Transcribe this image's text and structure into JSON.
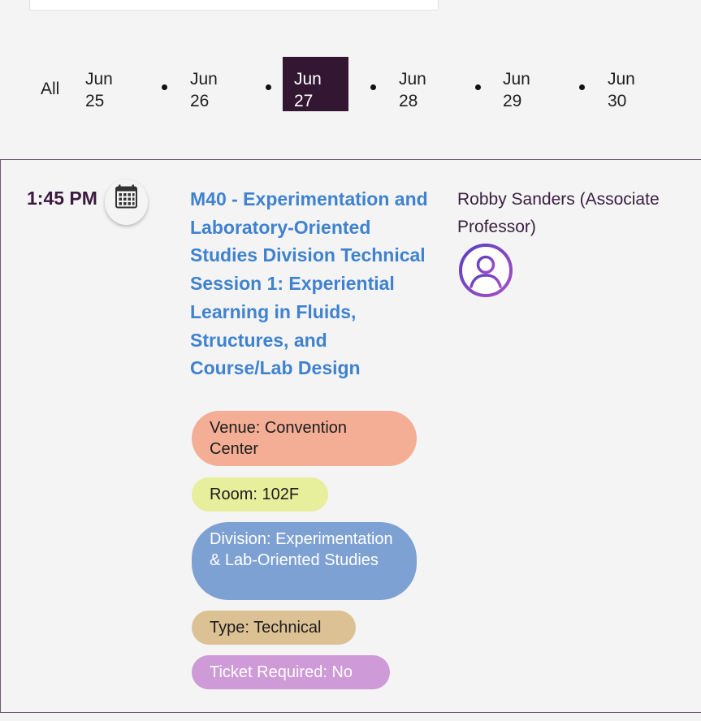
{
  "dates": {
    "all_label": "All",
    "items": [
      {
        "month": "Jun",
        "day": "25"
      },
      {
        "month": "Jun",
        "day": "26"
      },
      {
        "month": "Jun",
        "day": "27"
      },
      {
        "month": "Jun",
        "day": "28"
      },
      {
        "month": "Jun",
        "day": "29"
      },
      {
        "month": "Jun",
        "day": "30"
      }
    ],
    "selected_index": 2,
    "selected_color": "#331632"
  },
  "session": {
    "time": "1:45 PM",
    "title": "M40 - Experimentation and Laboratory-Oriented Studies Division Technical Session 1: Experiential Learning in Fluids, Structures, and Course/Lab Design",
    "title_color": "#3f82d0",
    "speaker": "Robby Sanders (Associate Professor)",
    "icons": {
      "calendar": "calendar-icon",
      "avatar": "user-avatar-icon"
    },
    "tags": {
      "venue": "Venue: Convention Center",
      "room": "Room: 102F",
      "division": "Division: Experimentation & Lab-Oriented Studies",
      "type": "Type: Technical",
      "ticket": "Ticket Required: No"
    }
  }
}
